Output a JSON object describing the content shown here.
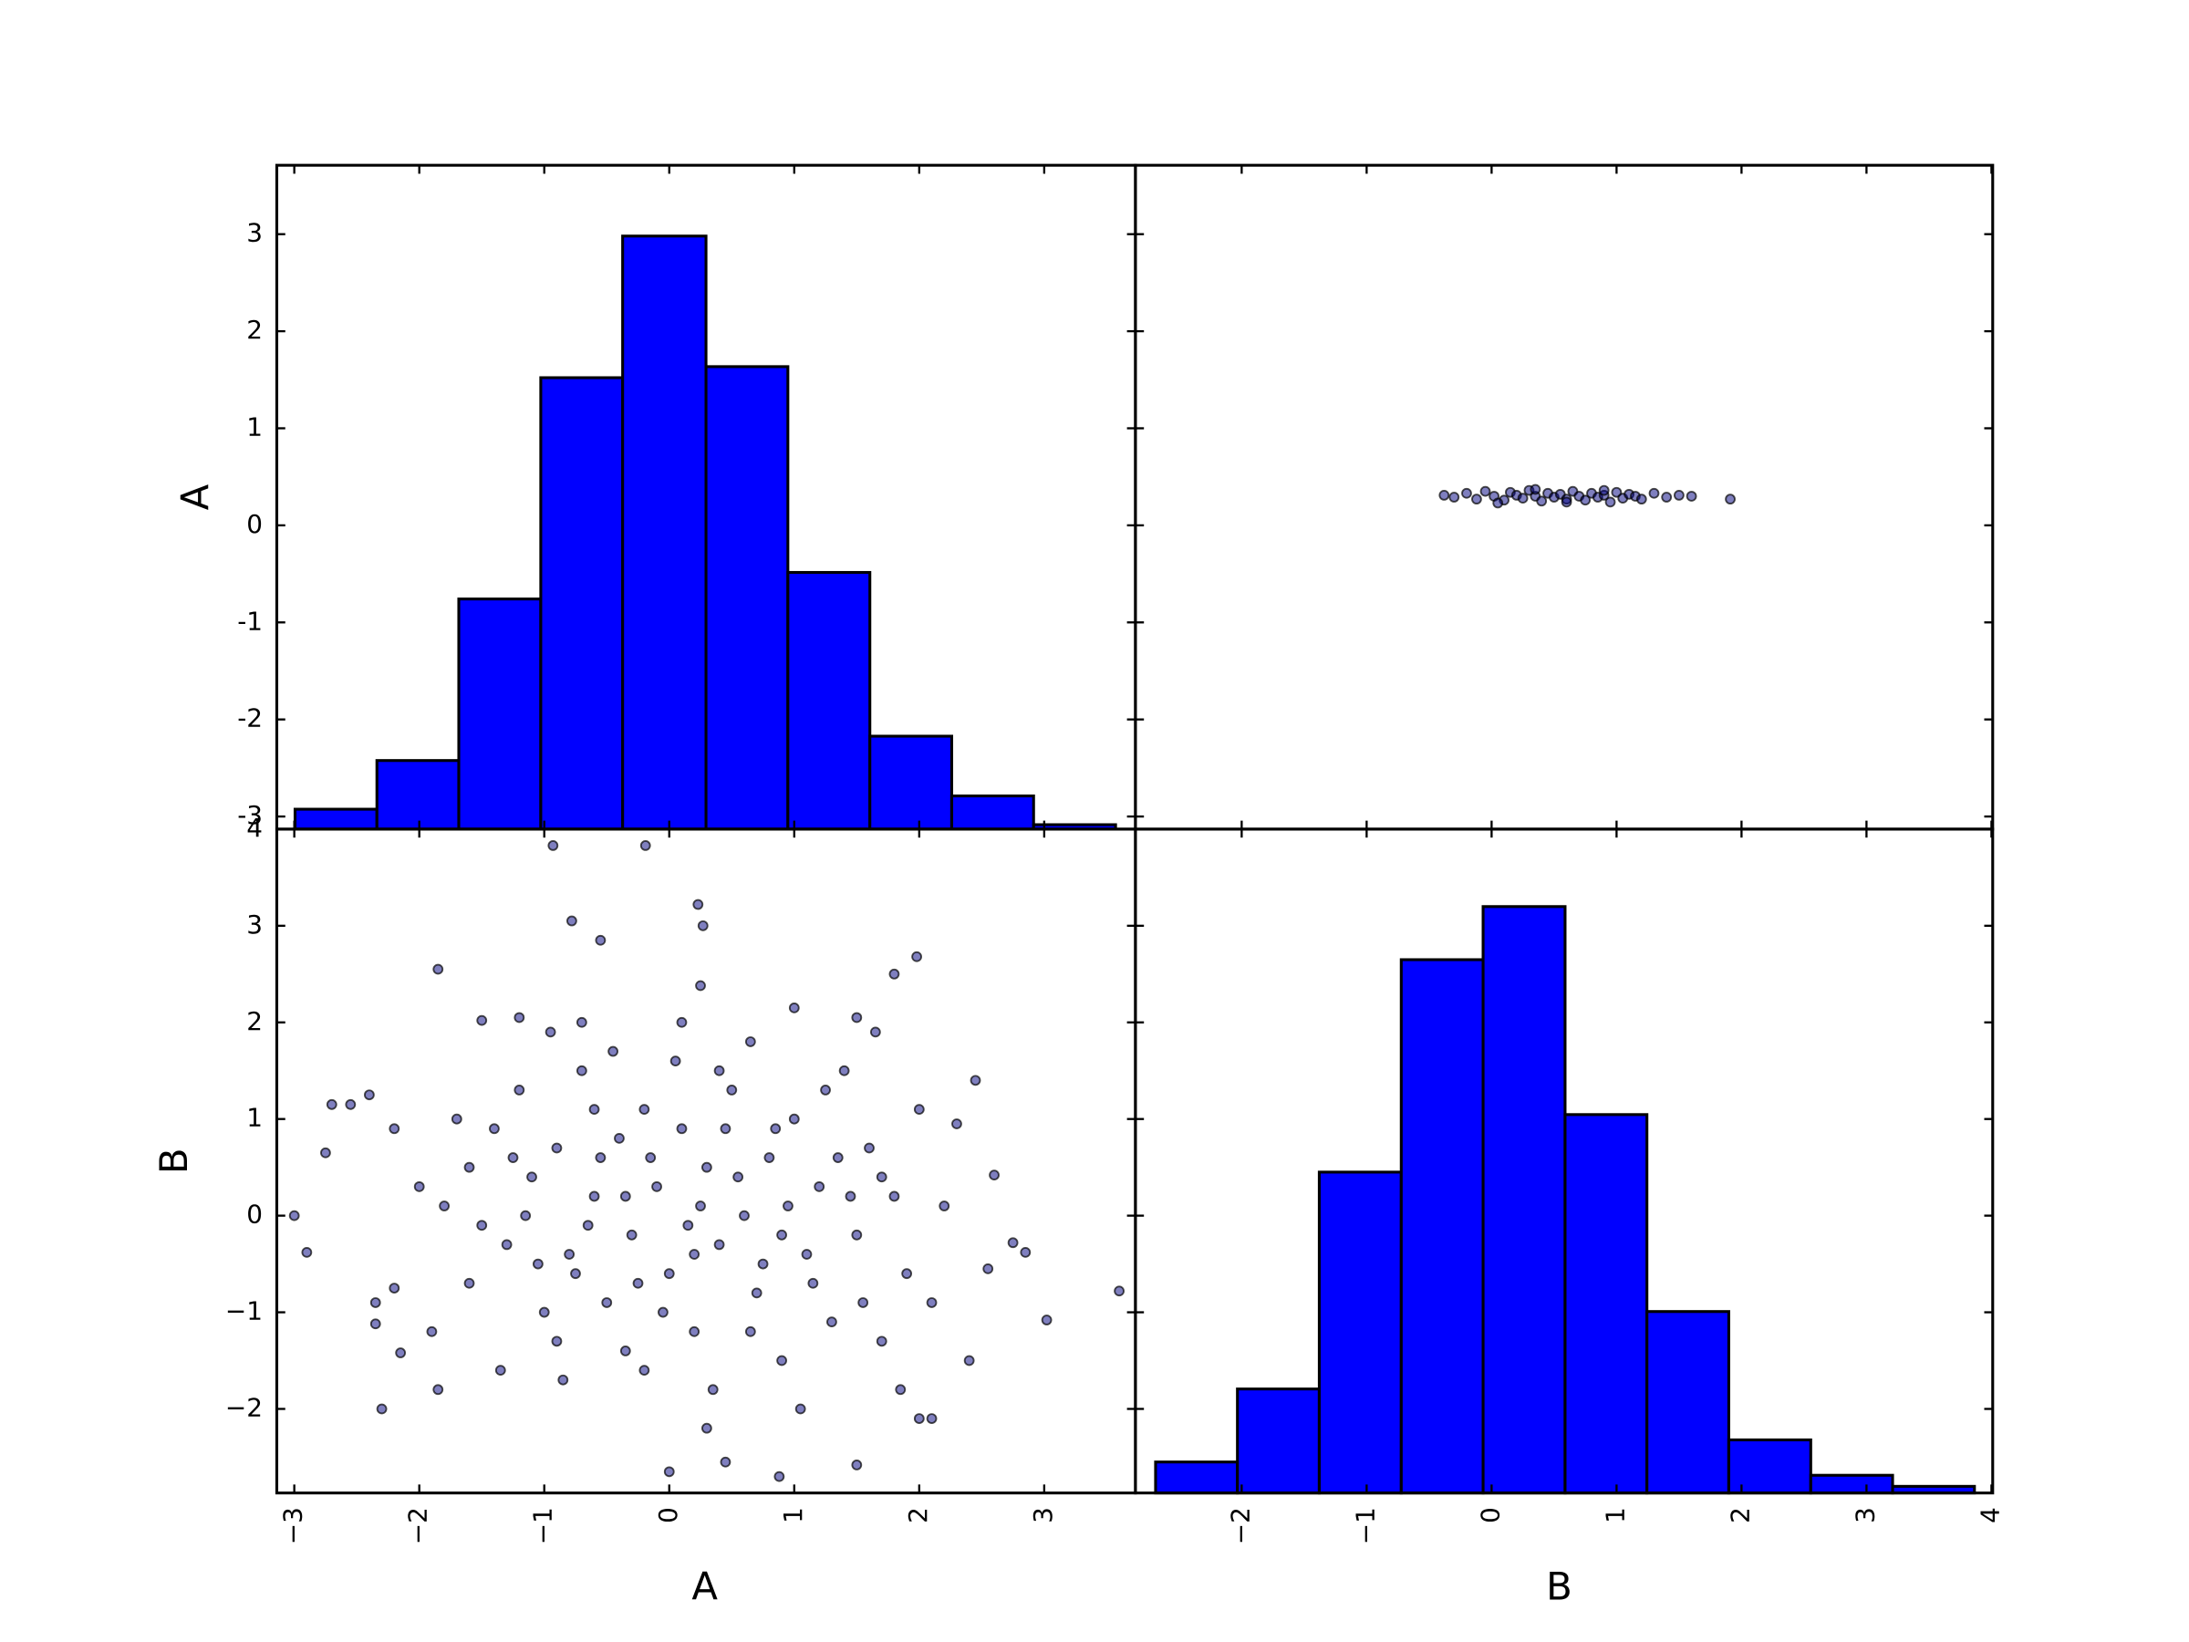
{
  "chart_data": [
    {
      "type": "histogram",
      "ylabel": "A",
      "color": "#0000ff",
      "bins": [
        -2.994,
        -2.339,
        -1.684,
        -1.028,
        -0.373,
        0.294,
        0.949,
        1.605,
        2.26,
        2.915,
        3.571
      ],
      "counts": [
        9,
        31,
        104,
        204,
        268,
        209,
        116,
        42,
        15,
        2
      ],
      "countlim": [
        0,
        300
      ],
      "xlim": [
        -3.14,
        3.73
      ],
      "ylim": [
        -3.13,
        3.71
      ],
      "yticks": [
        3,
        2,
        1,
        0,
        -1,
        -2,
        -3
      ]
    },
    {
      "type": "scatter",
      "color": "#000080",
      "alpha": 0.5,
      "x": [
        -0.38,
        -0.3,
        -0.2,
        -0.12,
        -0.05,
        0.02,
        0.1,
        0.15,
        0.2,
        0.25,
        0.3,
        0.35,
        0.4,
        0.45,
        0.5,
        0.55,
        0.6,
        0.65,
        0.7,
        0.75,
        0.8,
        0.85,
        0.9,
        0.95,
        1.0,
        1.05,
        1.1,
        1.15,
        1.2,
        1.3,
        1.4,
        1.5,
        1.6,
        1.91,
        0.05,
        0.35,
        0.6,
        0.9
      ],
      "y": [
        0.31,
        0.29,
        0.33,
        0.27,
        0.35,
        0.3,
        0.26,
        0.34,
        0.31,
        0.28,
        0.36,
        0.3,
        0.25,
        0.33,
        0.29,
        0.32,
        0.27,
        0.35,
        0.3,
        0.26,
        0.33,
        0.29,
        0.31,
        0.24,
        0.34,
        0.28,
        0.32,
        0.3,
        0.27,
        0.33,
        0.29,
        0.31,
        0.3,
        0.27,
        0.23,
        0.37,
        0.24,
        0.36
      ],
      "xlim": [
        -2.85,
        4.01
      ],
      "ylim": [
        -3.13,
        3.71
      ]
    },
    {
      "type": "scatter",
      "xlabel": "A",
      "ylabel": "B",
      "color": "#000080",
      "alpha": 0.5,
      "x": [
        -3.0,
        -2.9,
        -2.75,
        -2.7,
        -2.55,
        -2.4,
        -2.35,
        -2.35,
        -2.3,
        -2.2,
        -2.15,
        -1.85,
        -1.85,
        -0.93,
        -0.19,
        0.23,
        0.27,
        -0.78,
        -0.55,
        1.8,
        1.98,
        3.6,
        3.02,
        2.75,
        2.45,
        0.0,
        0.88,
        1.5,
        0.45,
        2.0,
        2.1,
        2.6,
        2.85,
        2.55,
        2.3,
        -1.5,
        -1.2,
        1.0,
        1.5,
        0.25,
        -1.8,
        -1.6,
        -1.4,
        -1.3,
        -1.2,
        -1.1,
        -1.0,
        -0.9,
        -0.8,
        -0.7,
        -0.6,
        -0.5,
        -0.4,
        -0.3,
        -0.2,
        -0.1,
        0.0,
        0.1,
        0.2,
        0.3,
        0.4,
        0.5,
        0.6,
        0.7,
        0.8,
        0.9,
        1.0,
        1.1,
        1.2,
        1.3,
        1.4,
        1.5,
        1.6,
        1.7,
        1.8,
        1.9,
        2.0,
        2.1,
        -1.9,
        -1.7,
        -1.5,
        -1.35,
        -1.15,
        -0.95,
        -0.85,
        -0.65,
        -0.45,
        -0.35,
        -0.15,
        0.05,
        0.15,
        0.35,
        0.55,
        0.65,
        0.75,
        0.95,
        1.05,
        1.25,
        1.35,
        1.55,
        1.65,
        1.85,
        -0.55,
        -0.25,
        0.25,
        0.45,
        -0.75,
        0.85,
        -1.05,
        1.15,
        -0.05,
        0.65,
        -0.6,
        0.4,
        -1.25,
        1.45,
        -0.35,
        0.2,
        -0.9,
        0.9,
        -1.6,
        1.7,
        -0.2,
        0.1,
        -0.7,
        2.2,
        -2.0,
        2.4,
        -2.2,
        0.3
      ],
      "y": [
        0.0,
        -0.38,
        0.65,
        1.15,
        1.15,
        1.25,
        -1.12,
        -0.9,
        -2.0,
        -0.75,
        -1.42,
        2.55,
        -1.8,
        3.83,
        3.83,
        3.22,
        3.0,
        3.05,
        2.85,
        2.5,
        2.68,
        -0.78,
        -1.08,
        -0.28,
        1.4,
        -2.65,
        -2.7,
        -2.58,
        -2.55,
        -2.1,
        -2.1,
        0.42,
        -0.38,
        -0.55,
        0.95,
        2.02,
        2.05,
        2.15,
        2.05,
        2.38,
        0.1,
        -0.7,
        0.9,
        -0.3,
        1.3,
        0.4,
        -1.0,
        0.7,
        -0.4,
        1.5,
        0.2,
        -0.9,
        0.8,
        -0.2,
        1.1,
        0.3,
        -0.6,
        0.9,
        -1.2,
        0.5,
        -0.3,
        1.3,
        0.0,
        -0.8,
        0.6,
        -1.5,
        1.0,
        -0.4,
        0.3,
        -1.1,
        1.5,
        -0.2,
        0.7,
        -1.3,
        0.2,
        -0.6,
        1.1,
        -0.9,
        -1.2,
        1.0,
        -0.1,
        -1.6,
        0.0,
        1.9,
        -1.7,
        -0.1,
        1.7,
        -1.4,
        0.6,
        1.6,
        -0.1,
        -1.8,
        0.4,
        1.8,
        -0.5,
        0.1,
        -2.0,
        1.3,
        0.6,
        -0.9,
        1.9,
        -1.8,
        0.6,
        -0.7,
        0.1,
        0.9,
        -0.6,
        0.9,
        -0.5,
        -0.7,
        -1.0,
        -1.2,
        1.1,
        1.5,
        0.6,
        0.2,
        0.2,
        -0.4,
        -1.3,
        -0.2,
        0.5,
        0.4,
        -1.6,
        2.0,
        2.0,
        0.1,
        0.3,
        -1.5,
        0.9,
        -2.2
      ],
      "xlim": [
        -3.14,
        3.73
      ],
      "ylim": [
        -2.87,
        4.0
      ],
      "xticks": [
        {
          "value": -3,
          "label": "−3"
        },
        {
          "value": -2,
          "label": "−2"
        },
        {
          "value": -1,
          "label": "−1"
        },
        0,
        1,
        2,
        3
      ],
      "yticks": [
        4,
        3,
        2,
        1,
        0,
        {
          "value": -1,
          "label": "−1"
        },
        {
          "value": -2,
          "label": "−2"
        }
      ]
    },
    {
      "type": "histogram",
      "xlabel": "B",
      "color": "#0000ff",
      "bins": [
        -2.689,
        -2.034,
        -1.379,
        -0.723,
        -0.068,
        0.588,
        1.243,
        1.898,
        2.554,
        3.209,
        3.864
      ],
      "counts": [
        14,
        47,
        145,
        241,
        265,
        171,
        82,
        24,
        8,
        3
      ],
      "countlim": [
        0,
        300
      ],
      "xlim": [
        -2.85,
        4.01
      ],
      "xticks": [
        {
          "value": -2,
          "label": "−2"
        },
        {
          "value": -1,
          "label": "−1"
        },
        0,
        1,
        2,
        3,
        4
      ]
    }
  ]
}
